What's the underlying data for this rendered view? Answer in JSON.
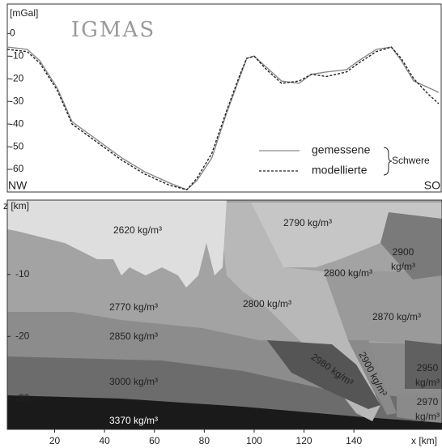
{
  "chart_data": [
    {
      "type": "line",
      "title": "IGMAS",
      "y_label": "[mGal]",
      "left_label": "NW",
      "right_label": "SO",
      "legend_group": "Schwere",
      "x": [
        1,
        9,
        14,
        21,
        27,
        37,
        47,
        56,
        66,
        73,
        77,
        83,
        89,
        94,
        97,
        100,
        105,
        111,
        118,
        123,
        129,
        137,
        142,
        149,
        155,
        159,
        164,
        170,
        174
      ],
      "series": [
        {
          "name": "gemessene",
          "color": "#8a8a8a",
          "line_style": "solid",
          "values": [
            -6,
            -7,
            -12,
            -24,
            -39,
            -47,
            -55,
            -61,
            -66,
            -69,
            -65,
            -55,
            -35,
            -20,
            -11,
            -10,
            -15,
            -21,
            -22,
            -18,
            -17,
            -16,
            -12,
            -7,
            -6,
            -12,
            -21,
            -24,
            -26
          ]
        },
        {
          "name": "modellierte",
          "color": "#222222",
          "line_style": "dashed",
          "values": [
            -7,
            -8,
            -13,
            -25,
            -40,
            -48,
            -56,
            -62,
            -67,
            -69,
            -64,
            -53,
            -34,
            -19,
            -11,
            -10,
            -16,
            -22,
            -21,
            -18,
            -19,
            -17,
            -13,
            -8,
            -6,
            -11,
            -20,
            -27,
            -31
          ]
        }
      ],
      "xlim": [
        1,
        175
      ],
      "ylim": [
        -70,
        13
      ],
      "yticks": [
        0,
        -10,
        -20,
        -30,
        -40,
        -50,
        -60
      ]
    },
    {
      "type": "section",
      "y_label": "z [km]",
      "x_label": "x [km]",
      "xlim": [
        1,
        175
      ],
      "xticks": [
        20,
        40,
        60,
        80,
        100,
        120,
        140
      ],
      "ylim": [
        -35,
        2
      ],
      "yticks": [
        -10,
        -20,
        -30
      ],
      "annotations": [
        [
          "2620 kg/m³"
        ],
        [
          "2790 kg/m³"
        ],
        [
          "2900",
          "kg/m³"
        ],
        [
          "2800 kg/m³"
        ],
        [
          "2770 kg/m³"
        ],
        [
          "2800 kg/m³"
        ],
        [
          "2870 kg/m³"
        ],
        [
          "2850 kg/m³"
        ],
        [
          "2980 kg/m³"
        ],
        [
          "2900 kg/m³"
        ],
        [
          "2950",
          "kg/m³"
        ],
        [
          "3000 kg/m³"
        ],
        [
          "2970",
          "kg/m³"
        ],
        [
          "3370 kg/m³"
        ]
      ]
    }
  ]
}
